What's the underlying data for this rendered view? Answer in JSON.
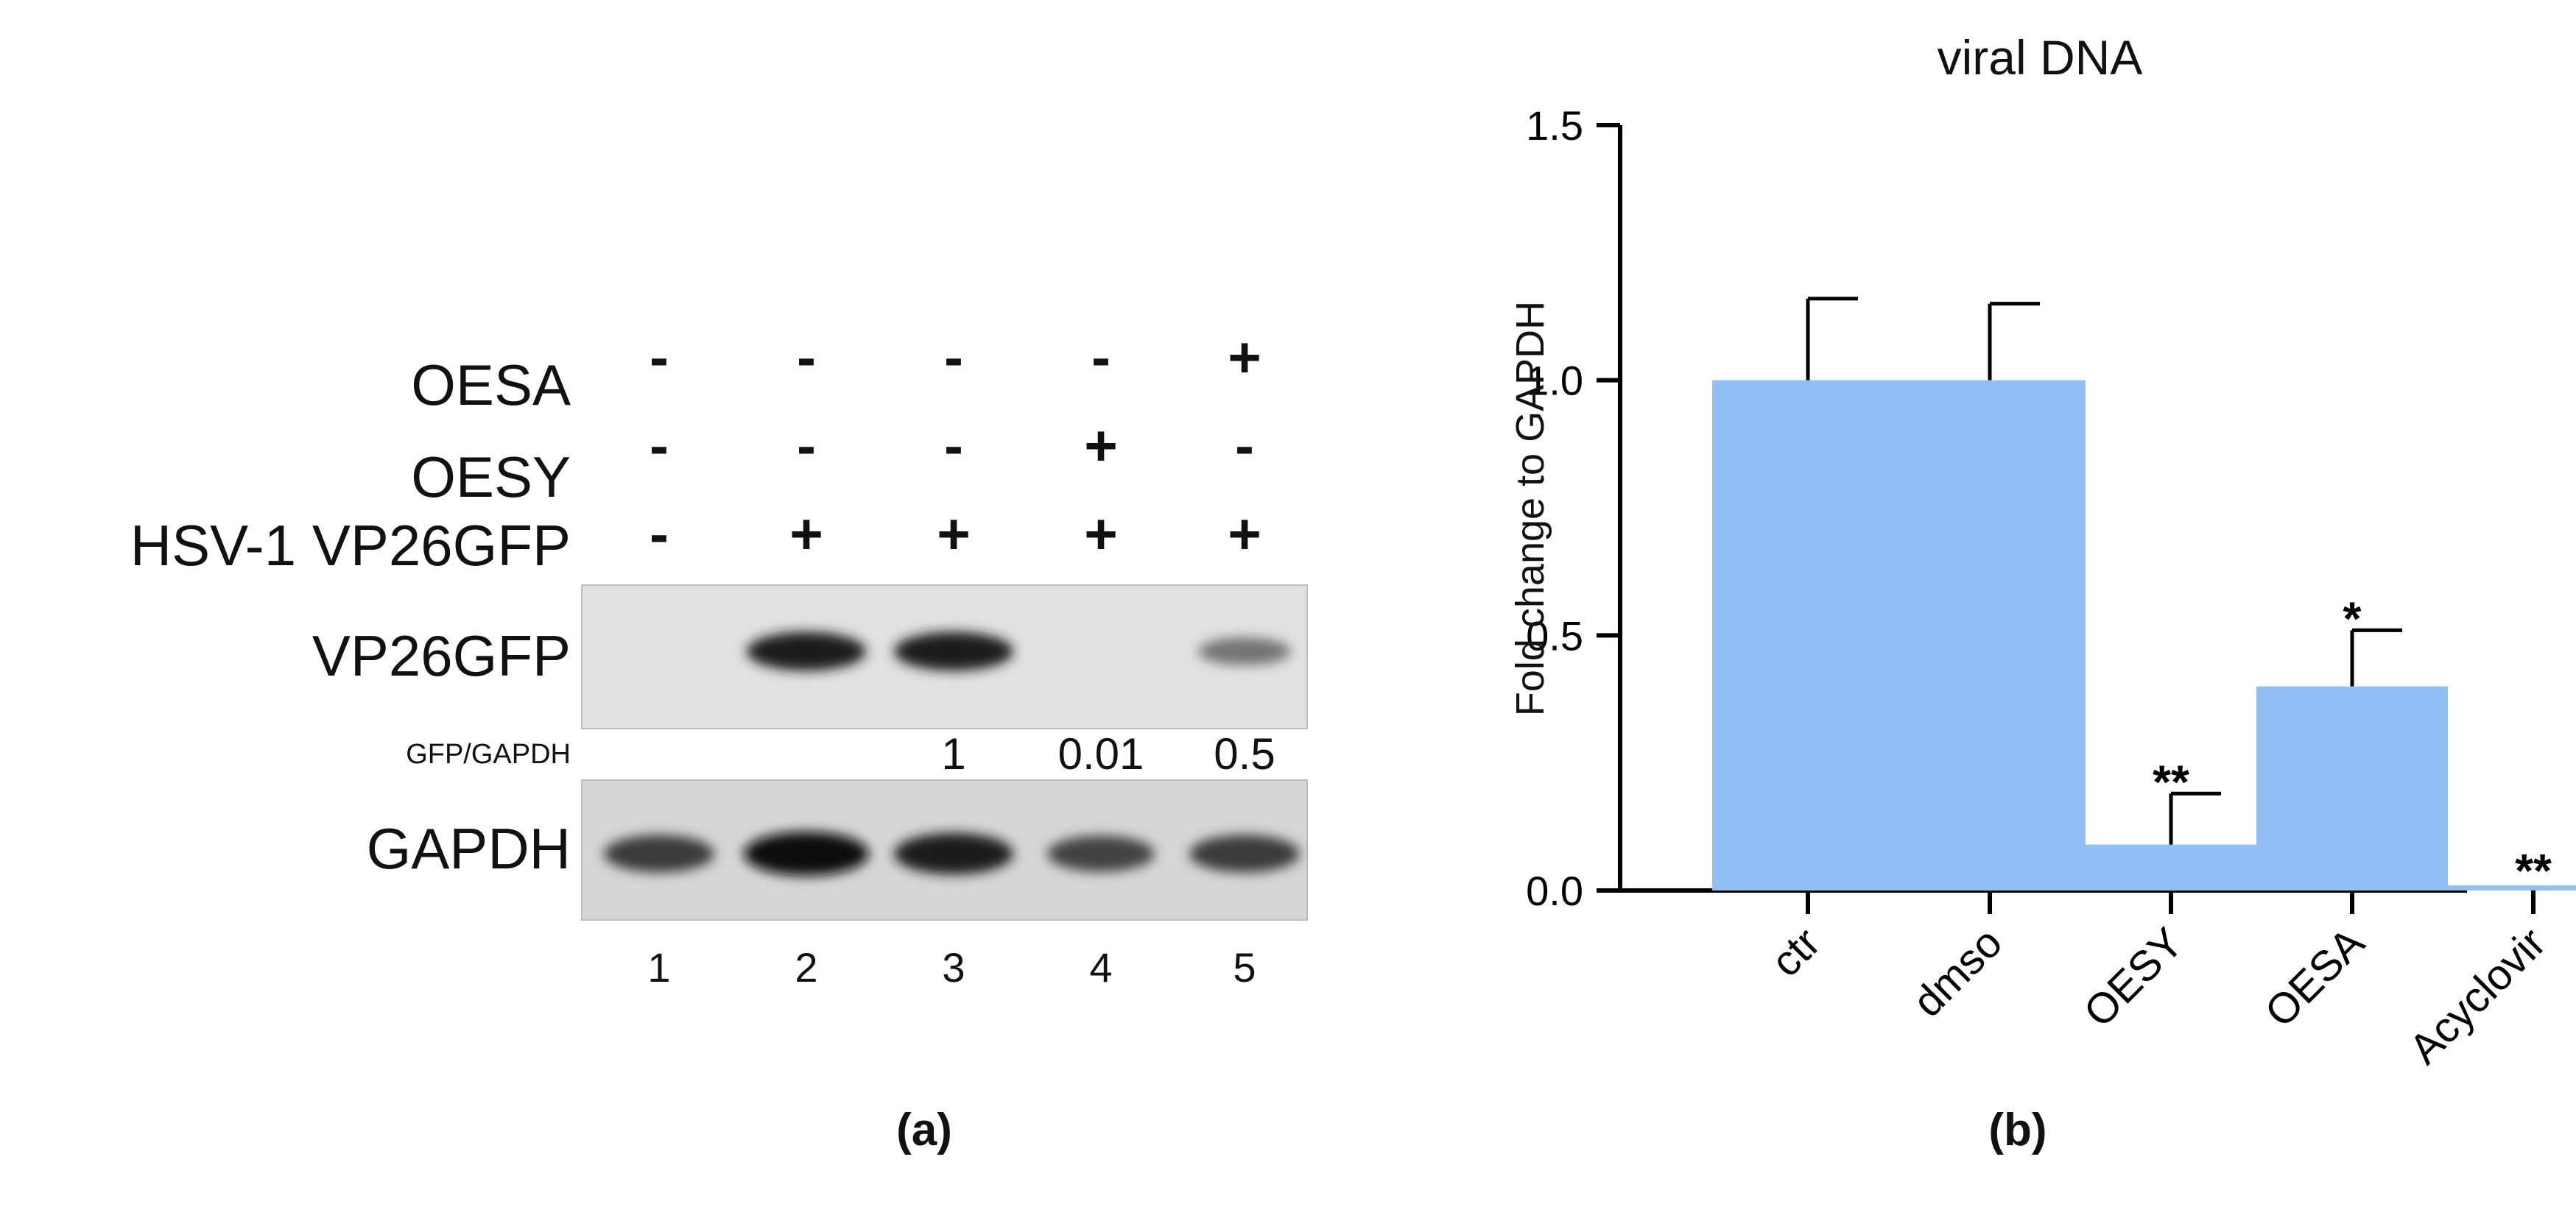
{
  "panel_a": {
    "label": "(a)",
    "rows": [
      {
        "label": "OESA",
        "signs": [
          "-",
          "-",
          "-",
          "-",
          "+"
        ]
      },
      {
        "label": "OESY",
        "signs": [
          "-",
          "-",
          "-",
          "+",
          "-"
        ]
      },
      {
        "label": "HSV-1 VP26GFP",
        "signs": [
          "-",
          "+",
          "+",
          "+",
          "+"
        ]
      }
    ],
    "blot1_label": "VP26GFP",
    "ratio_label": "GFP/GAPDH",
    "ratios": [
      "",
      "",
      "1",
      "0.01",
      "0.5"
    ],
    "blot2_label": "GAPDH",
    "lanes": [
      "1",
      "2",
      "3",
      "4",
      "5"
    ],
    "band_intensity_vp26gfp": [
      0,
      0.9,
      0.9,
      0,
      0.45
    ],
    "band_intensity_gapdh": [
      0.75,
      1.0,
      0.9,
      0.7,
      0.75
    ]
  },
  "panel_b": {
    "label": "(b)",
    "bar_color": "#92bff5"
  },
  "chart_data": {
    "type": "bar",
    "title": "viral DNA",
    "ylabel": "Fold change to GAPDH",
    "xlabel": "",
    "categories": [
      "ctr",
      "dmso",
      "OESY",
      "OESA",
      "Acyclovir"
    ],
    "values": [
      1.0,
      1.0,
      0.09,
      0.4,
      0.01
    ],
    "errors": [
      0.16,
      0.15,
      0.1,
      0.11,
      0.0
    ],
    "significance": [
      "",
      "",
      "**",
      "*",
      "**"
    ],
    "ylim": [
      0,
      1.5
    ],
    "yticks": [
      "0.0",
      "0.5",
      "1.0",
      "1.5"
    ],
    "ytick_values": [
      0,
      0.5,
      1.0,
      1.5
    ],
    "grid": false,
    "legend": "none"
  }
}
